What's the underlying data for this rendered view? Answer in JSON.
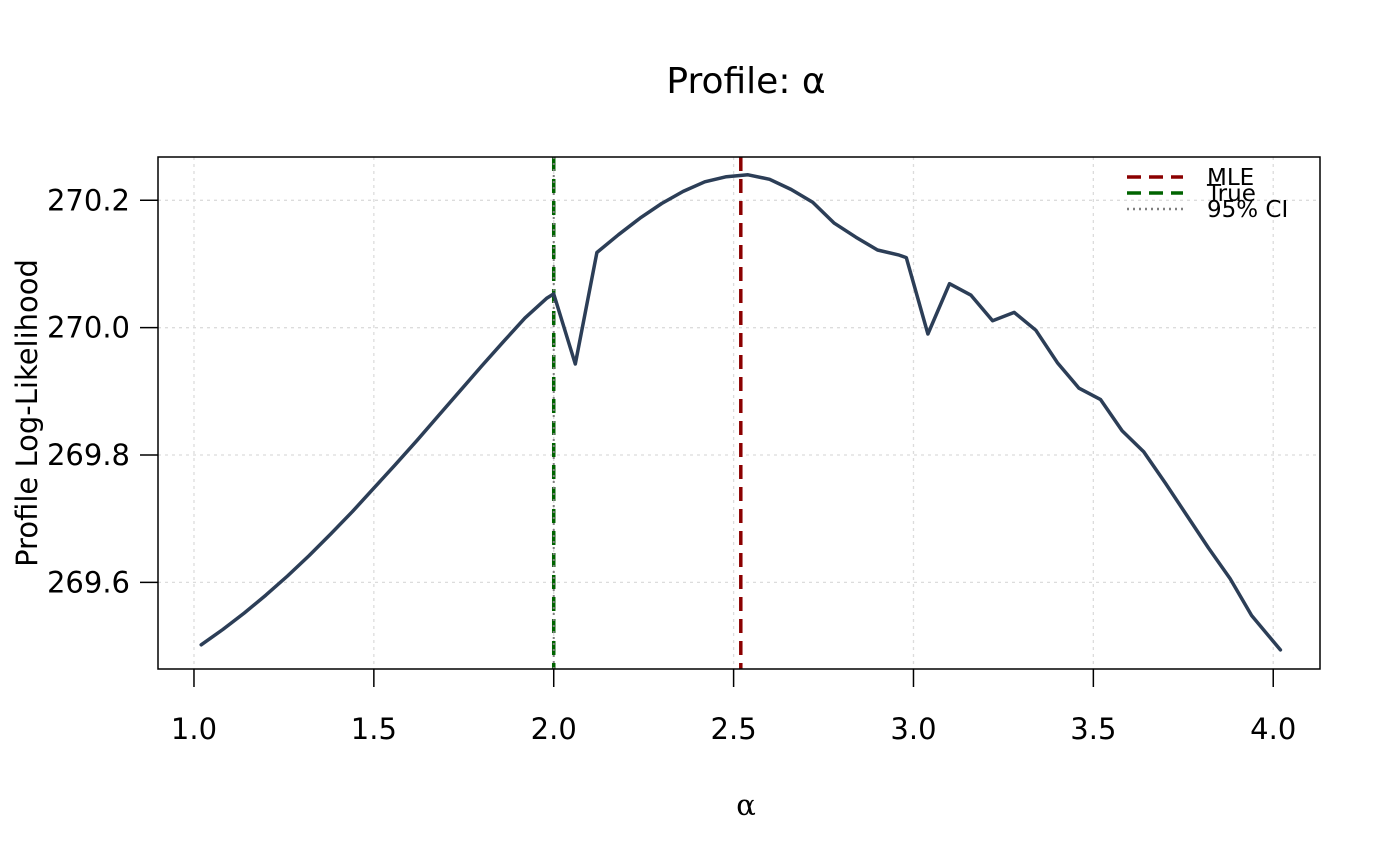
{
  "chart_data": {
    "type": "line",
    "title": "Profile: α",
    "xlabel": "α",
    "ylabel": "Profile Log-Likelihood",
    "xlim": [
      0.9,
      4.13
    ],
    "ylim": [
      269.464,
      270.268
    ],
    "x_ticks": [
      1.0,
      1.5,
      2.0,
      2.5,
      3.0,
      3.5,
      4.0
    ],
    "x_tick_labels": [
      "1.0",
      "1.5",
      "2.0",
      "2.5",
      "3.0",
      "3.5",
      "4.0"
    ],
    "y_ticks": [
      269.6,
      269.8,
      270.0,
      270.2
    ],
    "y_tick_labels": [
      "269.6",
      "269.8",
      "270.0",
      "270.2"
    ],
    "grid": true,
    "legend_position": "top-right",
    "series": [
      {
        "color": "#2c3e57",
        "x": [
          1.02,
          1.08,
          1.14,
          1.2,
          1.26,
          1.32,
          1.38,
          1.44,
          1.5,
          1.56,
          1.62,
          1.68,
          1.74,
          1.8,
          1.86,
          1.92,
          1.98,
          2.0,
          2.06,
          2.12,
          2.18,
          2.24,
          2.3,
          2.36,
          2.42,
          2.48,
          2.54,
          2.6,
          2.66,
          2.72,
          2.78,
          2.84,
          2.9,
          2.96,
          2.98,
          3.04,
          3.1,
          3.16,
          3.22,
          3.28,
          3.34,
          3.4,
          3.46,
          3.52,
          3.58,
          3.64,
          3.7,
          3.76,
          3.82,
          3.88,
          3.94,
          4.02
        ],
        "y": [
          269.502,
          269.526,
          269.552,
          269.58,
          269.61,
          269.642,
          269.676,
          269.711,
          269.748,
          269.785,
          269.823,
          269.862,
          269.901,
          269.94,
          269.978,
          270.015,
          270.046,
          270.053,
          269.943,
          270.118,
          270.146,
          270.172,
          270.195,
          270.214,
          270.229,
          270.237,
          270.24,
          270.233,
          270.217,
          270.197,
          270.164,
          270.142,
          270.122,
          270.114,
          270.11,
          269.99,
          270.069,
          270.051,
          270.011,
          270.024,
          269.996,
          269.945,
          269.905,
          269.887,
          269.838,
          269.805,
          269.756,
          269.705,
          269.654,
          269.606,
          269.548,
          269.494
        ]
      }
    ],
    "vlines": [
      {
        "name": "MLE",
        "x": 2.52,
        "color": "#8b0000",
        "style": "dashed"
      },
      {
        "name": "True",
        "x": 2.0,
        "color": "#006400",
        "style": "dashed"
      },
      {
        "name": "95% CI",
        "x": 2.0,
        "color": "#808080",
        "style": "dotted"
      }
    ],
    "legend": [
      {
        "label": "MLE",
        "color": "#8b0000",
        "style": "dashed"
      },
      {
        "label": "True",
        "color": "#006400",
        "style": "dashed"
      },
      {
        "label": "95% CI",
        "color": "#808080",
        "style": "dotted"
      }
    ]
  }
}
